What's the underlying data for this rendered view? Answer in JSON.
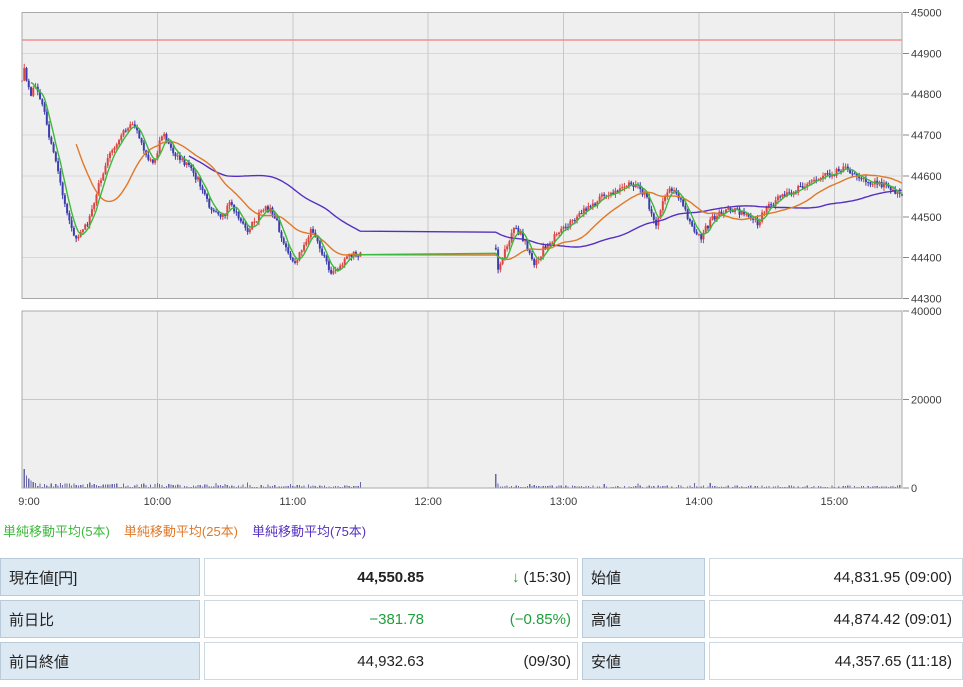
{
  "legend": {
    "items": [
      "単純移動平均(5本)",
      "単純移動平均(25本)",
      "単純移動平均(75本)"
    ]
  },
  "table": {
    "change_color": "#1fa03c",
    "left": [
      {
        "label": "現在値[円]",
        "main": "44,550.85",
        "arrow": "↓",
        "sub": "(15:30)"
      },
      {
        "label": "前日比",
        "main": "−381.78",
        "sub": "(−0.85%)"
      },
      {
        "label": "前日終値",
        "main": "44,932.63",
        "sub": "(09/30)"
      }
    ],
    "right": [
      {
        "label": "始値",
        "value": "44,831.95 (09:00)"
      },
      {
        "label": "高値",
        "value": "44,874.42 (09:01)"
      },
      {
        "label": "安値",
        "value": "44,357.65 (11:18)"
      }
    ]
  },
  "chart_data": {
    "type": "candlestick_with_volume",
    "title": "",
    "x_axis": {
      "labels": [
        "9:00",
        "10:00",
        "11:00",
        "12:00",
        "13:00",
        "14:00",
        "15:00"
      ],
      "hour_tick_minutes": [
        0,
        60,
        120,
        180,
        240,
        300,
        360
      ],
      "start_minute": 0,
      "end_minute": 390
    },
    "y_axis_price": {
      "min": 44300,
      "max": 45000,
      "ticks": [
        45000,
        44900,
        44800,
        44700,
        44600,
        44500,
        44400,
        44300
      ]
    },
    "y_axis_volume": {
      "min": 0,
      "max": 40000,
      "ticks": [
        40000,
        20000,
        0
      ]
    },
    "previous_close_line": 44932.63,
    "sessions": [
      [
        0,
        150
      ],
      [
        210,
        390
      ]
    ],
    "forced": {
      "open": 44831.95,
      "high": 44874.42,
      "high_minute": 1,
      "low": 44357.65,
      "low_minute": 138,
      "last_close": 44550.85
    },
    "price_waypoints": [
      [
        0,
        44832
      ],
      [
        1,
        44862
      ],
      [
        2,
        44830
      ],
      [
        4,
        44790
      ],
      [
        6,
        44825
      ],
      [
        8,
        44792
      ],
      [
        10,
        44762
      ],
      [
        12,
        44702
      ],
      [
        14,
        44660
      ],
      [
        16,
        44612
      ],
      [
        18,
        44560
      ],
      [
        20,
        44502
      ],
      [
        22,
        44470
      ],
      [
        24,
        44446
      ],
      [
        26,
        44460
      ],
      [
        28,
        44476
      ],
      [
        30,
        44500
      ],
      [
        32,
        44540
      ],
      [
        34,
        44580
      ],
      [
        36,
        44610
      ],
      [
        38,
        44640
      ],
      [
        40,
        44664
      ],
      [
        42,
        44680
      ],
      [
        44,
        44700
      ],
      [
        46,
        44710
      ],
      [
        48,
        44726
      ],
      [
        50,
        44715
      ],
      [
        52,
        44700
      ],
      [
        54,
        44670
      ],
      [
        56,
        44642
      ],
      [
        58,
        44626
      ],
      [
        60,
        44660
      ],
      [
        62,
        44700
      ],
      [
        64,
        44690
      ],
      [
        66,
        44666
      ],
      [
        68,
        44650
      ],
      [
        70,
        44640
      ],
      [
        72,
        44630
      ],
      [
        74,
        44620
      ],
      [
        76,
        44606
      ],
      [
        78,
        44590
      ],
      [
        80,
        44566
      ],
      [
        82,
        44540
      ],
      [
        84,
        44520
      ],
      [
        86,
        44506
      ],
      [
        88,
        44496
      ],
      [
        90,
        44510
      ],
      [
        92,
        44534
      ],
      [
        94,
        44520
      ],
      [
        96,
        44500
      ],
      [
        98,
        44482
      ],
      [
        100,
        44470
      ],
      [
        102,
        44480
      ],
      [
        104,
        44496
      ],
      [
        106,
        44510
      ],
      [
        108,
        44524
      ],
      [
        110,
        44515
      ],
      [
        112,
        44500
      ],
      [
        114,
        44470
      ],
      [
        116,
        44440
      ],
      [
        118,
        44406
      ],
      [
        120,
        44386
      ],
      [
        122,
        44400
      ],
      [
        124,
        44420
      ],
      [
        126,
        44446
      ],
      [
        128,
        44464
      ],
      [
        130,
        44450
      ],
      [
        132,
        44426
      ],
      [
        134,
        44400
      ],
      [
        136,
        44376
      ],
      [
        138,
        44361
      ],
      [
        140,
        44376
      ],
      [
        142,
        44390
      ],
      [
        144,
        44400
      ],
      [
        146,
        44405
      ],
      [
        148,
        44408
      ],
      [
        150,
        44411
      ],
      [
        210,
        44420
      ],
      [
        211,
        44374
      ],
      [
        213,
        44396
      ],
      [
        215,
        44430
      ],
      [
        217,
        44464
      ],
      [
        219,
        44470
      ],
      [
        221,
        44456
      ],
      [
        223,
        44440
      ],
      [
        225,
        44410
      ],
      [
        227,
        44377
      ],
      [
        229,
        44400
      ],
      [
        231,
        44420
      ],
      [
        233,
        44431
      ],
      [
        235,
        44445
      ],
      [
        237,
        44455
      ],
      [
        240,
        44470
      ],
      [
        243,
        44485
      ],
      [
        246,
        44500
      ],
      [
        249,
        44514
      ],
      [
        252,
        44525
      ],
      [
        255,
        44540
      ],
      [
        258,
        44550
      ],
      [
        261,
        44556
      ],
      [
        264,
        44565
      ],
      [
        267,
        44574
      ],
      [
        270,
        44580
      ],
      [
        273,
        44570
      ],
      [
        276,
        44556
      ],
      [
        279,
        44511
      ],
      [
        281,
        44486
      ],
      [
        283,
        44520
      ],
      [
        285,
        44549
      ],
      [
        287,
        44564
      ],
      [
        290,
        44555
      ],
      [
        293,
        44526
      ],
      [
        296,
        44490
      ],
      [
        299,
        44461
      ],
      [
        301,
        44450
      ],
      [
        303,
        44470
      ],
      [
        306,
        44494
      ],
      [
        309,
        44510
      ],
      [
        312,
        44520
      ],
      [
        315,
        44516
      ],
      [
        318,
        44511
      ],
      [
        321,
        44506
      ],
      [
        324,
        44500
      ],
      [
        326,
        44481
      ],
      [
        328,
        44505
      ],
      [
        331,
        44525
      ],
      [
        334,
        44540
      ],
      [
        337,
        44550
      ],
      [
        340,
        44560
      ],
      [
        343,
        44566
      ],
      [
        346,
        44575
      ],
      [
        349,
        44584
      ],
      [
        352,
        44590
      ],
      [
        355,
        44600
      ],
      [
        358,
        44605
      ],
      [
        361,
        44610
      ],
      [
        364,
        44615
      ],
      [
        366,
        44620
      ],
      [
        368,
        44606
      ],
      [
        370,
        44596
      ],
      [
        372,
        44590
      ],
      [
        375,
        44586
      ],
      [
        378,
        44582
      ],
      [
        381,
        44580
      ],
      [
        384,
        44575
      ],
      [
        386,
        44566
      ],
      [
        388,
        44558
      ],
      [
        390,
        44551
      ]
    ],
    "volume": {
      "baseline_morning": 700,
      "baseline_afternoon": 340,
      "spikes": {
        "0": 8000,
        "1": 4300,
        "2": 2800,
        "3": 2100,
        "4": 1650,
        "5": 1350,
        "6": 1150,
        "8": 1000,
        "10": 950,
        "30": 1200,
        "45": 1000,
        "150": 1300,
        "210": 3200,
        "211": 1050,
        "225": 900,
        "389": 700,
        "390": 30500
      }
    },
    "moving_averages": [
      {
        "period": 5,
        "color": "#3cb83c"
      },
      {
        "period": 25,
        "color": "#e07828"
      },
      {
        "period": 75,
        "color": "#5530c0"
      }
    ],
    "colors": {
      "up": "#dd4444",
      "down": "#3c3cae",
      "volume": "#6666a8",
      "panel_bg": "#efefef",
      "grid": "#d9d9d9",
      "grid_hour": "#c8c8c8",
      "border": "#a8a8a8",
      "prev_close": "#f08f8f",
      "axis_text": "#3c3c3c"
    }
  }
}
